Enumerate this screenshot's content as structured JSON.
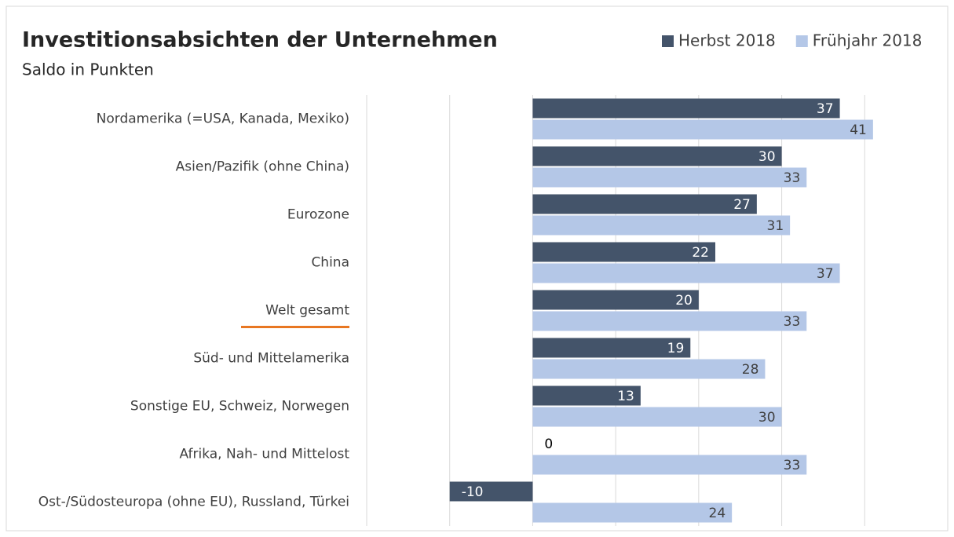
{
  "chart_data": {
    "type": "hbar",
    "title": "Investitionsabsichten der Unternehmen",
    "subtitle": "Saldo in Punkten",
    "categories": [
      "Nordamerika (=USA, Kanada, Mexiko)",
      "Asien/Pazifik (ohne China)",
      "Eurozone",
      "China",
      "Welt gesamt",
      "Süd- und Mittelamerika",
      "Sonstige EU, Schweiz, Norwegen",
      "Afrika, Nah- und Mittelost",
      "Ost-/Südosteuropa (ohne EU), Russland, Türkei"
    ],
    "series": [
      {
        "name": "Herbst 2018",
        "color": "#44546a",
        "values": [
          37,
          30,
          27,
          22,
          20,
          19,
          13,
          0,
          -10
        ]
      },
      {
        "name": "Frühjahr 2018",
        "color": "#b4c7e7",
        "values": [
          41,
          33,
          31,
          37,
          33,
          28,
          30,
          33,
          24
        ]
      }
    ],
    "xlim": [
      -20,
      50
    ],
    "xticks": [
      -20,
      -10,
      0,
      10,
      20,
      30,
      40,
      50
    ],
    "grid": true,
    "highlight": 4,
    "highlight_color": "#e87722",
    "legend": "top-right"
  }
}
